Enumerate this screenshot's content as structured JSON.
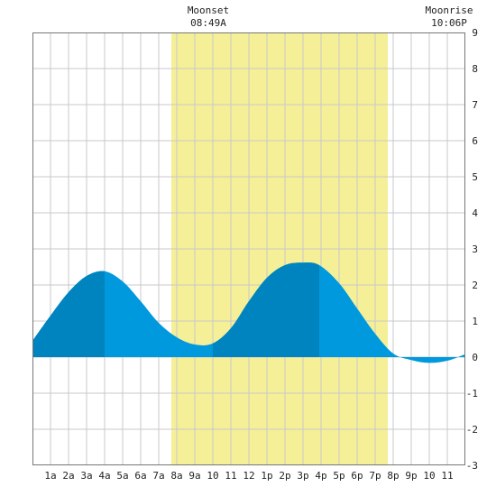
{
  "chart_data": {
    "type": "area",
    "annotations": {
      "moonset": {
        "label": "Moonset",
        "time": "08:49A"
      },
      "moonrise": {
        "label": "Moonrise",
        "time": "10:06P"
      }
    },
    "x_tick_labels": [
      "1a",
      "2a",
      "3a",
      "4a",
      "5a",
      "6a",
      "7a",
      "8a",
      "9a",
      "10",
      "11",
      "12",
      "1p",
      "2p",
      "3p",
      "4p",
      "5p",
      "6p",
      "7p",
      "8p",
      "9p",
      "10",
      "11"
    ],
    "y_tick_labels": [
      "-3",
      "-2",
      "-1",
      "0",
      "1",
      "2",
      "3",
      "4",
      "5",
      "6",
      "7",
      "8",
      "9"
    ],
    "xlim": [
      0,
      24
    ],
    "ylim": [
      -3,
      9
    ],
    "highlight_hours": [
      7.7,
      19.7
    ],
    "grid": true,
    "x_unit": "hour of day",
    "y_unit": "feet",
    "series": [
      {
        "x": [
          0,
          1,
          2,
          3,
          4,
          5,
          6,
          7,
          8,
          9,
          10,
          11,
          12,
          13,
          14,
          15,
          15.9,
          17,
          18,
          19,
          20,
          21,
          22,
          23,
          24
        ],
        "y": [
          0.45,
          1.15,
          1.8,
          2.25,
          2.38,
          2.1,
          1.55,
          0.95,
          0.55,
          0.35,
          0.38,
          0.8,
          1.55,
          2.2,
          2.55,
          2.62,
          2.55,
          2.05,
          1.35,
          0.65,
          0.1,
          -0.08,
          -0.16,
          -0.1,
          0.08
        ]
      }
    ],
    "dark_segments": [
      [
        0,
        4
      ],
      [
        10,
        15.9
      ]
    ],
    "colors": {
      "daylight": "#f5ef98",
      "tide_light": "#0099dd",
      "tide_dark": "#0084bf",
      "grid": "#c8c8c8",
      "border": "#777777"
    }
  }
}
